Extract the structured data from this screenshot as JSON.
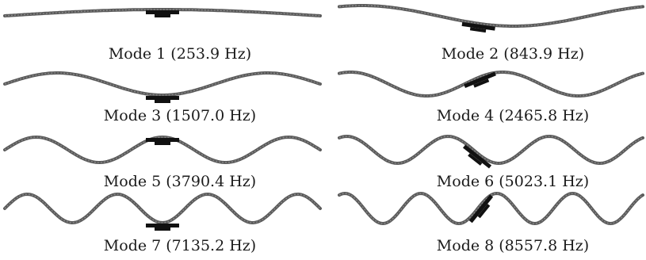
{
  "figure": {
    "modes": [
      {
        "label": "Mode 1 (253.9 Hz)",
        "mode_number": 1,
        "frequency_hz": 253.9
      },
      {
        "label": "Mode 2 (843.9 Hz)",
        "mode_number": 2,
        "frequency_hz": 843.9
      },
      {
        "label": "Mode 3 (1507.0 Hz)",
        "mode_number": 3,
        "frequency_hz": 1507.0
      },
      {
        "label": "Mode 4 (2465.8 Hz)",
        "mode_number": 4,
        "frequency_hz": 2465.8
      },
      {
        "label": "Mode 5 (3790.4 Hz)",
        "mode_number": 5,
        "frequency_hz": 3790.4
      },
      {
        "label": "Mode 6 (5023.1 Hz)",
        "mode_number": 6,
        "frequency_hz": 5023.1
      },
      {
        "label": "Mode 7 (7135.2 Hz)",
        "mode_number": 7,
        "frequency_hz": 7135.2
      },
      {
        "label": "Mode 8 (8557.8 Hz)",
        "mode_number": 8,
        "frequency_hz": 8557.8
      }
    ],
    "colors": {
      "beam": "#5a5a5a",
      "patch": "#111111",
      "text": "#1a1a1a"
    }
  }
}
